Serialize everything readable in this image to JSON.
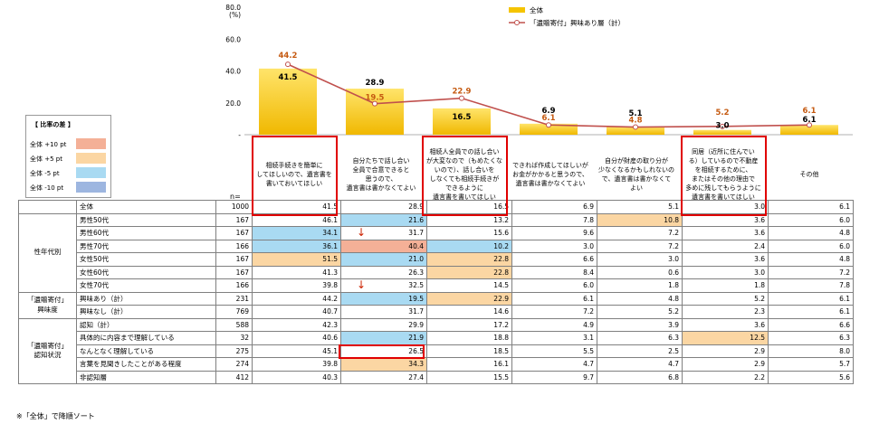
{
  "chart_data": {
    "type": "bar+line",
    "y_unit": "(%)",
    "ylim": [
      0,
      80
    ],
    "yticks": [
      "80.0",
      "60.0",
      "40.0",
      "20.0",
      "-"
    ],
    "series": [
      {
        "name": "全体",
        "type": "bar",
        "color": "#f5c400",
        "values": [
          41.5,
          28.9,
          16.5,
          6.9,
          5.1,
          3.0,
          6.1
        ],
        "labels": [
          "41.5",
          "28.9",
          "16.5",
          "6.9",
          "5.1",
          "3.0",
          "6.1"
        ]
      },
      {
        "name": "「遺贈寄付」興味あり層（計）",
        "type": "line",
        "color": "#c0504d",
        "values": [
          44.2,
          19.5,
          22.9,
          6.1,
          4.8,
          5.2,
          6.1
        ],
        "labels": [
          "44.2",
          "19.5",
          "22.9",
          "6.1",
          "4.8",
          "5.2",
          "6.1"
        ]
      }
    ],
    "categories": [
      "相続手続きを簡単に\nしてほしいので、遺言書を\n書いておいてほしい",
      "自分たちで話し合い\n全員で合意できると\n思うので、\n遺言書は書かなくてよい",
      "相続人全員での話し合い\nが大変なので（もめたくな\nいので）、話し合いを\nしなくても相続手続きが\nできるように\n遺言書を書いてほしい",
      "できれば作成してほしいが\nお金がかかると思うので、\n遺言書は書かなくてよい",
      "自分が財産の取り分が\n少なくなるかもしれないの\nで、遺言書は書かなくて\nよい",
      "同居（近所に住んでい\nる）しているので不動産\nを相続するために、\nまたはその他の理由で\n多めに残してもらうように\n遺言書を書いてほしい",
      "その他"
    ],
    "highlighted_categories": [
      0,
      2,
      5
    ]
  },
  "legend_diff": {
    "title": "【 比率の差 】",
    "items": [
      {
        "label": "全体 +10 pt",
        "color": "#f4b097"
      },
      {
        "label": "全体 +5 pt",
        "color": "#fbd6a3"
      },
      {
        "label": "全体 -5 pt",
        "color": "#a9daf2"
      },
      {
        "label": "全体 -10 pt",
        "color": "#9db6e0"
      }
    ]
  },
  "table": {
    "n_label": "n=",
    "rows": [
      {
        "group": "",
        "label": "全体",
        "n": "1000",
        "vals": [
          "41.5",
          "28.9",
          "16.5",
          "6.9",
          "5.1",
          "3.0",
          "6.1"
        ],
        "hl": [
          "",
          "",
          "",
          "",
          "",
          "",
          ""
        ]
      },
      {
        "group": "性年代別",
        "span": 6,
        "label": "男性50代",
        "n": "167",
        "vals": [
          "46.1",
          "21.6",
          "13.2",
          "7.8",
          "10.8",
          "3.6",
          "6.0"
        ],
        "hl": [
          "",
          "-5",
          "",
          "",
          "+5",
          "",
          ""
        ]
      },
      {
        "label": "男性60代",
        "n": "167",
        "vals": [
          "34.1",
          "31.7",
          "15.6",
          "9.6",
          "7.2",
          "3.6",
          "4.8"
        ],
        "hl": [
          "-5",
          "",
          "",
          "",
          "",
          "",
          ""
        ]
      },
      {
        "label": "男性70代",
        "n": "166",
        "vals": [
          "36.1",
          "40.4",
          "10.2",
          "3.0",
          "7.2",
          "2.4",
          "6.0"
        ],
        "hl": [
          "-5",
          "+10",
          "-5",
          "",
          "",
          "",
          ""
        ]
      },
      {
        "label": "女性50代",
        "n": "167",
        "vals": [
          "51.5",
          "21.0",
          "22.8",
          "6.6",
          "3.0",
          "3.6",
          "4.8"
        ],
        "hl": [
          "+5",
          "-5",
          "+5",
          "",
          "",
          "",
          ""
        ]
      },
      {
        "label": "女性60代",
        "n": "167",
        "vals": [
          "41.3",
          "26.3",
          "22.8",
          "8.4",
          "0.6",
          "3.0",
          "7.2"
        ],
        "hl": [
          "",
          "",
          "+5",
          "",
          "",
          "",
          ""
        ]
      },
      {
        "label": "女性70代",
        "n": "166",
        "vals": [
          "39.8",
          "32.5",
          "14.5",
          "6.0",
          "1.8",
          "1.8",
          "7.8"
        ],
        "hl": [
          "",
          "",
          "",
          "",
          "",
          "",
          ""
        ]
      },
      {
        "group": "「遺贈寄付」\n興味度",
        "span": 2,
        "label": "興味あり（計）",
        "n": "231",
        "vals": [
          "44.2",
          "19.5",
          "22.9",
          "6.1",
          "4.8",
          "5.2",
          "6.1"
        ],
        "hl": [
          "",
          "-5",
          "+5",
          "",
          "",
          "",
          ""
        ]
      },
      {
        "label": "興味なし（計）",
        "n": "769",
        "vals": [
          "40.7",
          "31.7",
          "14.6",
          "7.2",
          "5.2",
          "2.3",
          "6.1"
        ],
        "hl": [
          "",
          "",
          "",
          "",
          "",
          "",
          ""
        ]
      },
      {
        "group": "「遺贈寄付」\n認知状況",
        "span": 5,
        "label": "認知（計）",
        "n": "588",
        "vals": [
          "42.3",
          "29.9",
          "17.2",
          "4.9",
          "3.9",
          "3.6",
          "6.6"
        ],
        "hl": [
          "",
          "",
          "",
          "",
          "",
          "",
          ""
        ]
      },
      {
        "label": "具体的に内容まで理解している",
        "n": "32",
        "vals": [
          "40.6",
          "21.9",
          "18.8",
          "3.1",
          "6.3",
          "12.5",
          "6.3"
        ],
        "hl": [
          "",
          "-5",
          "",
          "",
          "",
          "+5",
          ""
        ]
      },
      {
        "label": "なんとなく理解している",
        "n": "275",
        "vals": [
          "45.1",
          "26.5",
          "18.5",
          "5.5",
          "2.5",
          "2.9",
          "8.0"
        ],
        "hl": [
          "",
          "",
          "",
          "",
          "",
          "",
          ""
        ]
      },
      {
        "label": "言葉を見聞きしたことがある程度",
        "n": "274",
        "vals": [
          "39.8",
          "34.3",
          "16.1",
          "4.7",
          "4.7",
          "2.9",
          "5.7"
        ],
        "hl": [
          "",
          "+5",
          "",
          "",
          "",
          "",
          ""
        ]
      },
      {
        "label": "非認知層",
        "n": "412",
        "vals": [
          "40.3",
          "27.4",
          "15.5",
          "9.7",
          "6.8",
          "2.2",
          "5.6"
        ],
        "hl": [
          "",
          "",
          "",
          "",
          "",
          "",
          ""
        ]
      }
    ]
  },
  "note": "※「全体」で降順ソート"
}
